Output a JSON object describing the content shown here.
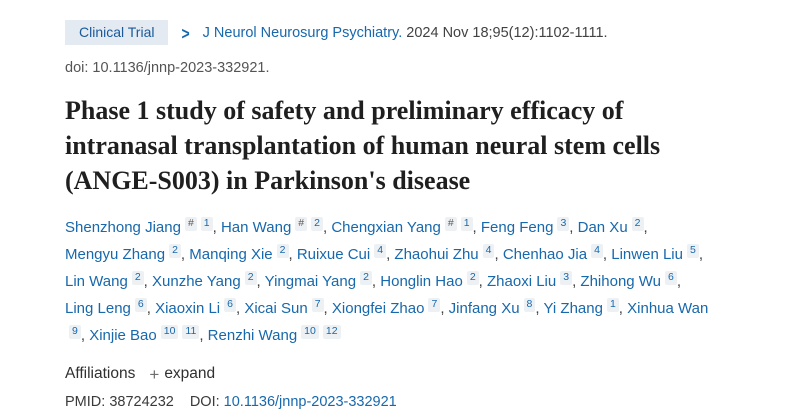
{
  "colors": {
    "link": "#1768ac",
    "badge_bg": "#e4eaf2",
    "badge_text": "#19599a",
    "text_dark": "#424242",
    "title_color": "#1f1f1f",
    "doi_gray": "#545454",
    "supbox_bg": "#eef1f4",
    "hash_color": "#5a5a5a",
    "page_bg": "#ffffff"
  },
  "icons": {
    "chevron": ">",
    "plus": "+"
  },
  "badge": {
    "label": "Clinical Trial"
  },
  "citation": {
    "journal": "J Neurol Neurosurg Psychiatry.",
    "details": "2024 Nov 18;95(12):1102-1111.",
    "doi_line": "doi: 10.1136/jnnp-2023-332921."
  },
  "title": "Phase 1 study of safety and preliminary efficacy of intranasal transplantation of human neural stem cells (ANGE-S003) in Parkinson's disease",
  "authors": [
    {
      "name": "Shenzhong Jiang",
      "sups": [
        "#",
        "1"
      ]
    },
    {
      "name": "Han Wang",
      "sups": [
        "#",
        "2"
      ]
    },
    {
      "name": "Chengxian Yang",
      "sups": [
        "#",
        "1"
      ]
    },
    {
      "name": "Feng Feng",
      "sups": [
        "3"
      ]
    },
    {
      "name": "Dan Xu",
      "sups": [
        "2"
      ]
    },
    {
      "name": "Mengyu Zhang",
      "sups": [
        "2"
      ]
    },
    {
      "name": "Manqing Xie",
      "sups": [
        "2"
      ]
    },
    {
      "name": "Ruixue Cui",
      "sups": [
        "4"
      ]
    },
    {
      "name": "Zhaohui Zhu",
      "sups": [
        "4"
      ]
    },
    {
      "name": "Chenhao Jia",
      "sups": [
        "4"
      ]
    },
    {
      "name": "Linwen Liu",
      "sups": [
        "5"
      ]
    },
    {
      "name": "Lin Wang",
      "sups": [
        "2"
      ]
    },
    {
      "name": "Xunzhe Yang",
      "sups": [
        "2"
      ]
    },
    {
      "name": "Yingmai Yang",
      "sups": [
        "2"
      ]
    },
    {
      "name": "Honglin Hao",
      "sups": [
        "2"
      ]
    },
    {
      "name": "Zhaoxi Liu",
      "sups": [
        "3"
      ]
    },
    {
      "name": "Zhihong Wu",
      "sups": [
        "6"
      ]
    },
    {
      "name": "Ling Leng",
      "sups": [
        "6"
      ]
    },
    {
      "name": "Xiaoxin Li",
      "sups": [
        "6"
      ]
    },
    {
      "name": "Xicai Sun",
      "sups": [
        "7"
      ]
    },
    {
      "name": "Xiongfei Zhao",
      "sups": [
        "7"
      ]
    },
    {
      "name": "Jinfang Xu",
      "sups": [
        "8"
      ]
    },
    {
      "name": "Yi Zhang",
      "sups": [
        "1"
      ]
    },
    {
      "name": "Xinhua Wan",
      "sups": [
        "9"
      ]
    },
    {
      "name": "Xinjie Bao",
      "sups": [
        "10",
        "11"
      ]
    },
    {
      "name": "Renzhi Wang",
      "sups": [
        "10",
        "12"
      ]
    }
  ],
  "affiliations": {
    "label": "Affiliations",
    "expand_label": "expand"
  },
  "ids": {
    "pmid_label": "PMID:",
    "pmid": "38724232",
    "doi_label": "DOI:",
    "doi": "10.1136/jnnp-2023-332921"
  }
}
